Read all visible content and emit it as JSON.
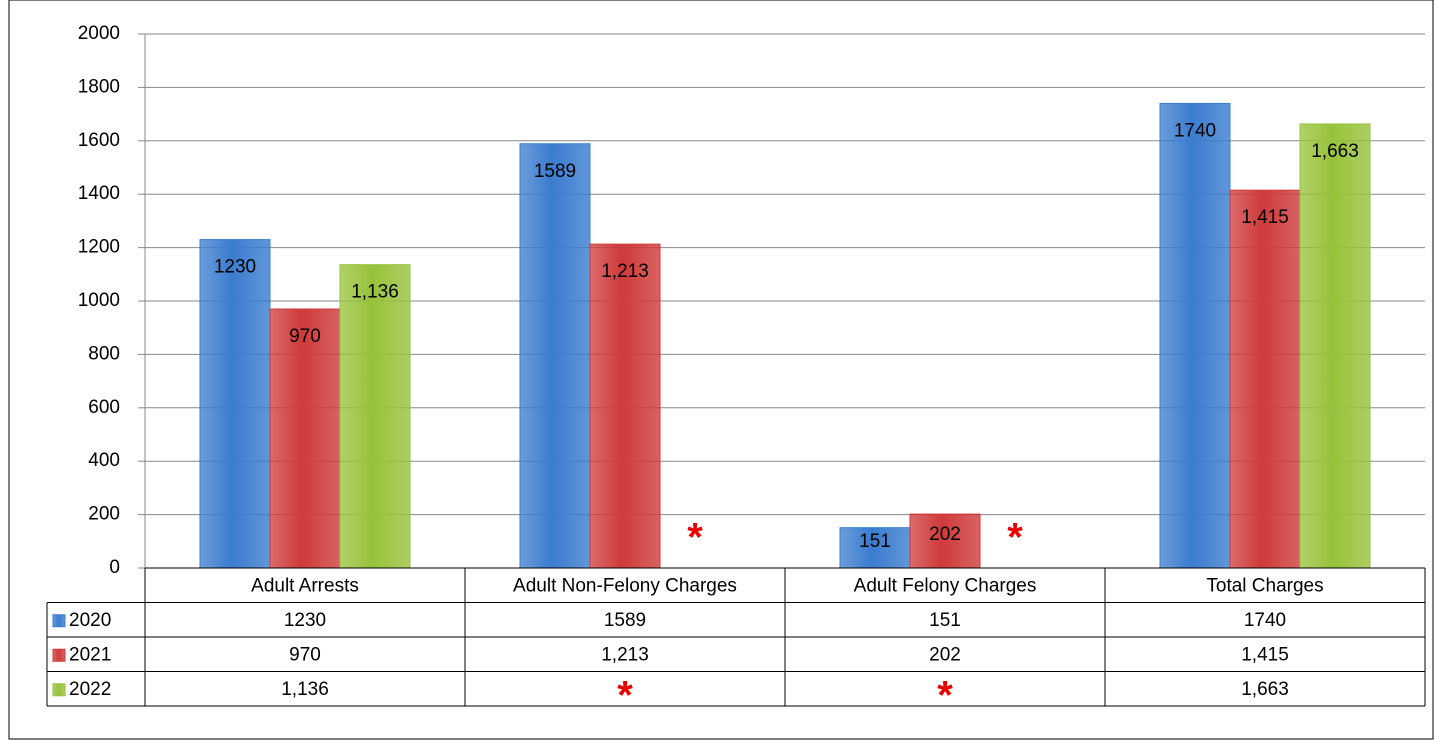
{
  "chart_data": {
    "type": "bar",
    "categories": [
      "Adult Arrests",
      "Adult Non-Felony Charges",
      "Adult Felony Charges",
      "Total Charges"
    ],
    "series": [
      {
        "name": "2020",
        "color": "#3a7ccf",
        "values": [
          1230,
          1589,
          151,
          1740
        ]
      },
      {
        "name": "2021",
        "color": "#cf3a3a",
        "values": [
          970,
          1213,
          202,
          1415
        ],
        "value_labels": [
          "970",
          "1,213",
          "202",
          "1,415"
        ]
      },
      {
        "name": "2022",
        "color": "#97c23a",
        "values": [
          1136,
          null,
          null,
          1663
        ],
        "value_labels": [
          "1,136",
          "*",
          "*",
          "1,663"
        ]
      }
    ],
    "ylim": [
      0,
      2000
    ],
    "yticks": [
      0,
      200,
      400,
      600,
      800,
      1000,
      1200,
      1400,
      1600,
      1800,
      2000
    ],
    "grid": true,
    "data_table": true
  }
}
